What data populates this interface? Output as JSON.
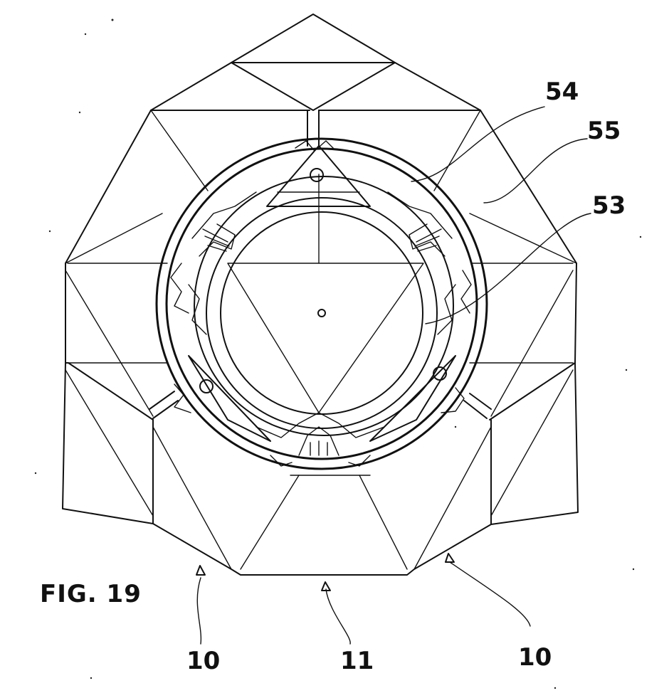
{
  "figure": {
    "caption": "FIG. 19",
    "reference_numerals": {
      "ring_outer": "54",
      "face_piece": "55",
      "ring_inner": "53",
      "edge_left": "10",
      "edge_center": "11",
      "edge_right": "10"
    }
  }
}
